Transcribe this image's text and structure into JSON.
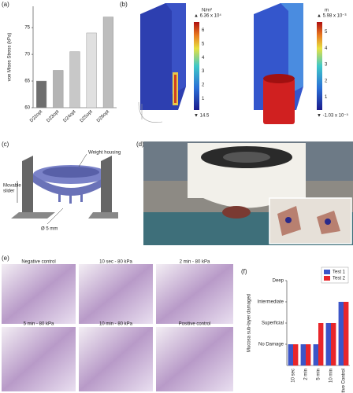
{
  "panel_labels": [
    "(a)",
    "(b)",
    "(c)",
    "(d)",
    "(e)",
    "(f)"
  ],
  "panel_b": {
    "colorbar_stress": {
      "unit": "N/m²",
      "max": "▲ 6.36 x 10⁴",
      "ticks": [
        1,
        2,
        3,
        4,
        5,
        6
      ],
      "min": "▼ 14.5"
    },
    "colorbar_displacement": {
      "unit": "m",
      "max": "▲ 5.98 x 10⁻³",
      "ticks": [
        1,
        2,
        3,
        4,
        5
      ],
      "min": "▼ -1.03 x 10⁻⁵"
    }
  },
  "panel_c": {
    "weight_housing": "Weight housing",
    "slider_line1": "Movable",
    "slider_line2": "slider",
    "diameter": "Ø 5 mm"
  },
  "panel_e": {
    "tiles": [
      "Negative control",
      "10 sec - 80 kPa",
      "2 min - 80 kPa",
      "5 min - 80 kPa",
      "10 min - 80 kPa",
      "Positive control"
    ]
  },
  "chart_data": [
    {
      "type": "bar",
      "y_label": "von Mises Stress (kPa)",
      "categories": [
        "D22opt",
        "D23opt",
        "D24opt",
        "D25opt",
        "D26opt"
      ],
      "values": [
        65,
        67,
        70.5,
        74,
        77
      ],
      "colors": [
        "#6e6e6e",
        "#b4b4b4",
        "#c8c8c8",
        "#e0e0e0",
        "#bdbdbd"
      ],
      "ylim": [
        60,
        79
      ],
      "yticks": [
        60,
        65,
        70,
        75
      ],
      "grid": false,
      "label_rotation": -45
    },
    {
      "type": "bar",
      "y_label": "Mucosa sub-layer damaged",
      "categories": [
        "10 sec",
        "2 min",
        "5 min",
        "10 min",
        "Positive Control"
      ],
      "series": [
        {
          "name": "Test 1",
          "color": "#3b55c8",
          "values": [
            1,
            1,
            1,
            2,
            3
          ]
        },
        {
          "name": "Test 2",
          "color": "#e8262a",
          "values": [
            1,
            1,
            2,
            2,
            3
          ]
        }
      ],
      "ylim": [
        0,
        4
      ],
      "yticks": [
        {
          "value": 1,
          "label": "No Damage"
        },
        {
          "value": 2,
          "label": "Superficial"
        },
        {
          "value": 3,
          "label": "Intermediate"
        },
        {
          "value": 4,
          "label": "Deep"
        }
      ],
      "grid": false,
      "legend": "top-right",
      "label_rotation": -90
    }
  ]
}
